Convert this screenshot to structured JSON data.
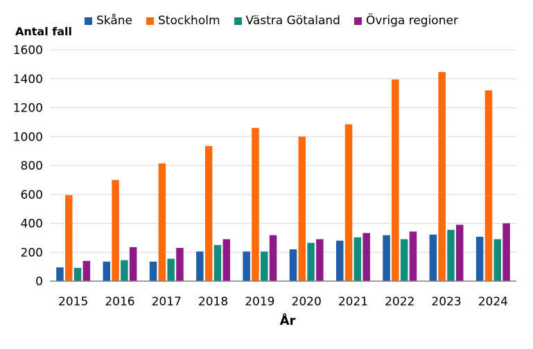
{
  "chart_data": {
    "type": "bar",
    "xlabel": "År",
    "ylabel": "Antal fall",
    "ylim": [
      0,
      1600
    ],
    "yticks": [
      "0",
      "200",
      "400",
      "600",
      "800",
      "1000",
      "1200",
      "1400",
      "1600"
    ],
    "grid": true,
    "legend_position": "top",
    "categories": [
      "2015",
      "2016",
      "2017",
      "2018",
      "2019",
      "2020",
      "2021",
      "2022",
      "2023",
      "2024"
    ],
    "series": [
      {
        "name": "Skåne",
        "color": "#1F5FA8",
        "values": [
          95,
          135,
          135,
          205,
          205,
          220,
          280,
          318,
          322,
          307
        ]
      },
      {
        "name": "Stockholm",
        "color": "#FF6A0C",
        "values": [
          595,
          700,
          815,
          935,
          1060,
          1000,
          1085,
          1395,
          1447,
          1320
        ]
      },
      {
        "name": "Västra Götaland",
        "color": "#138C7D",
        "values": [
          92,
          145,
          155,
          250,
          205,
          265,
          303,
          290,
          355,
          290
        ]
      },
      {
        "name": "Övriga regioner",
        "color": "#8E1A87",
        "values": [
          140,
          235,
          230,
          290,
          318,
          290,
          333,
          343,
          390,
          400
        ]
      }
    ]
  }
}
